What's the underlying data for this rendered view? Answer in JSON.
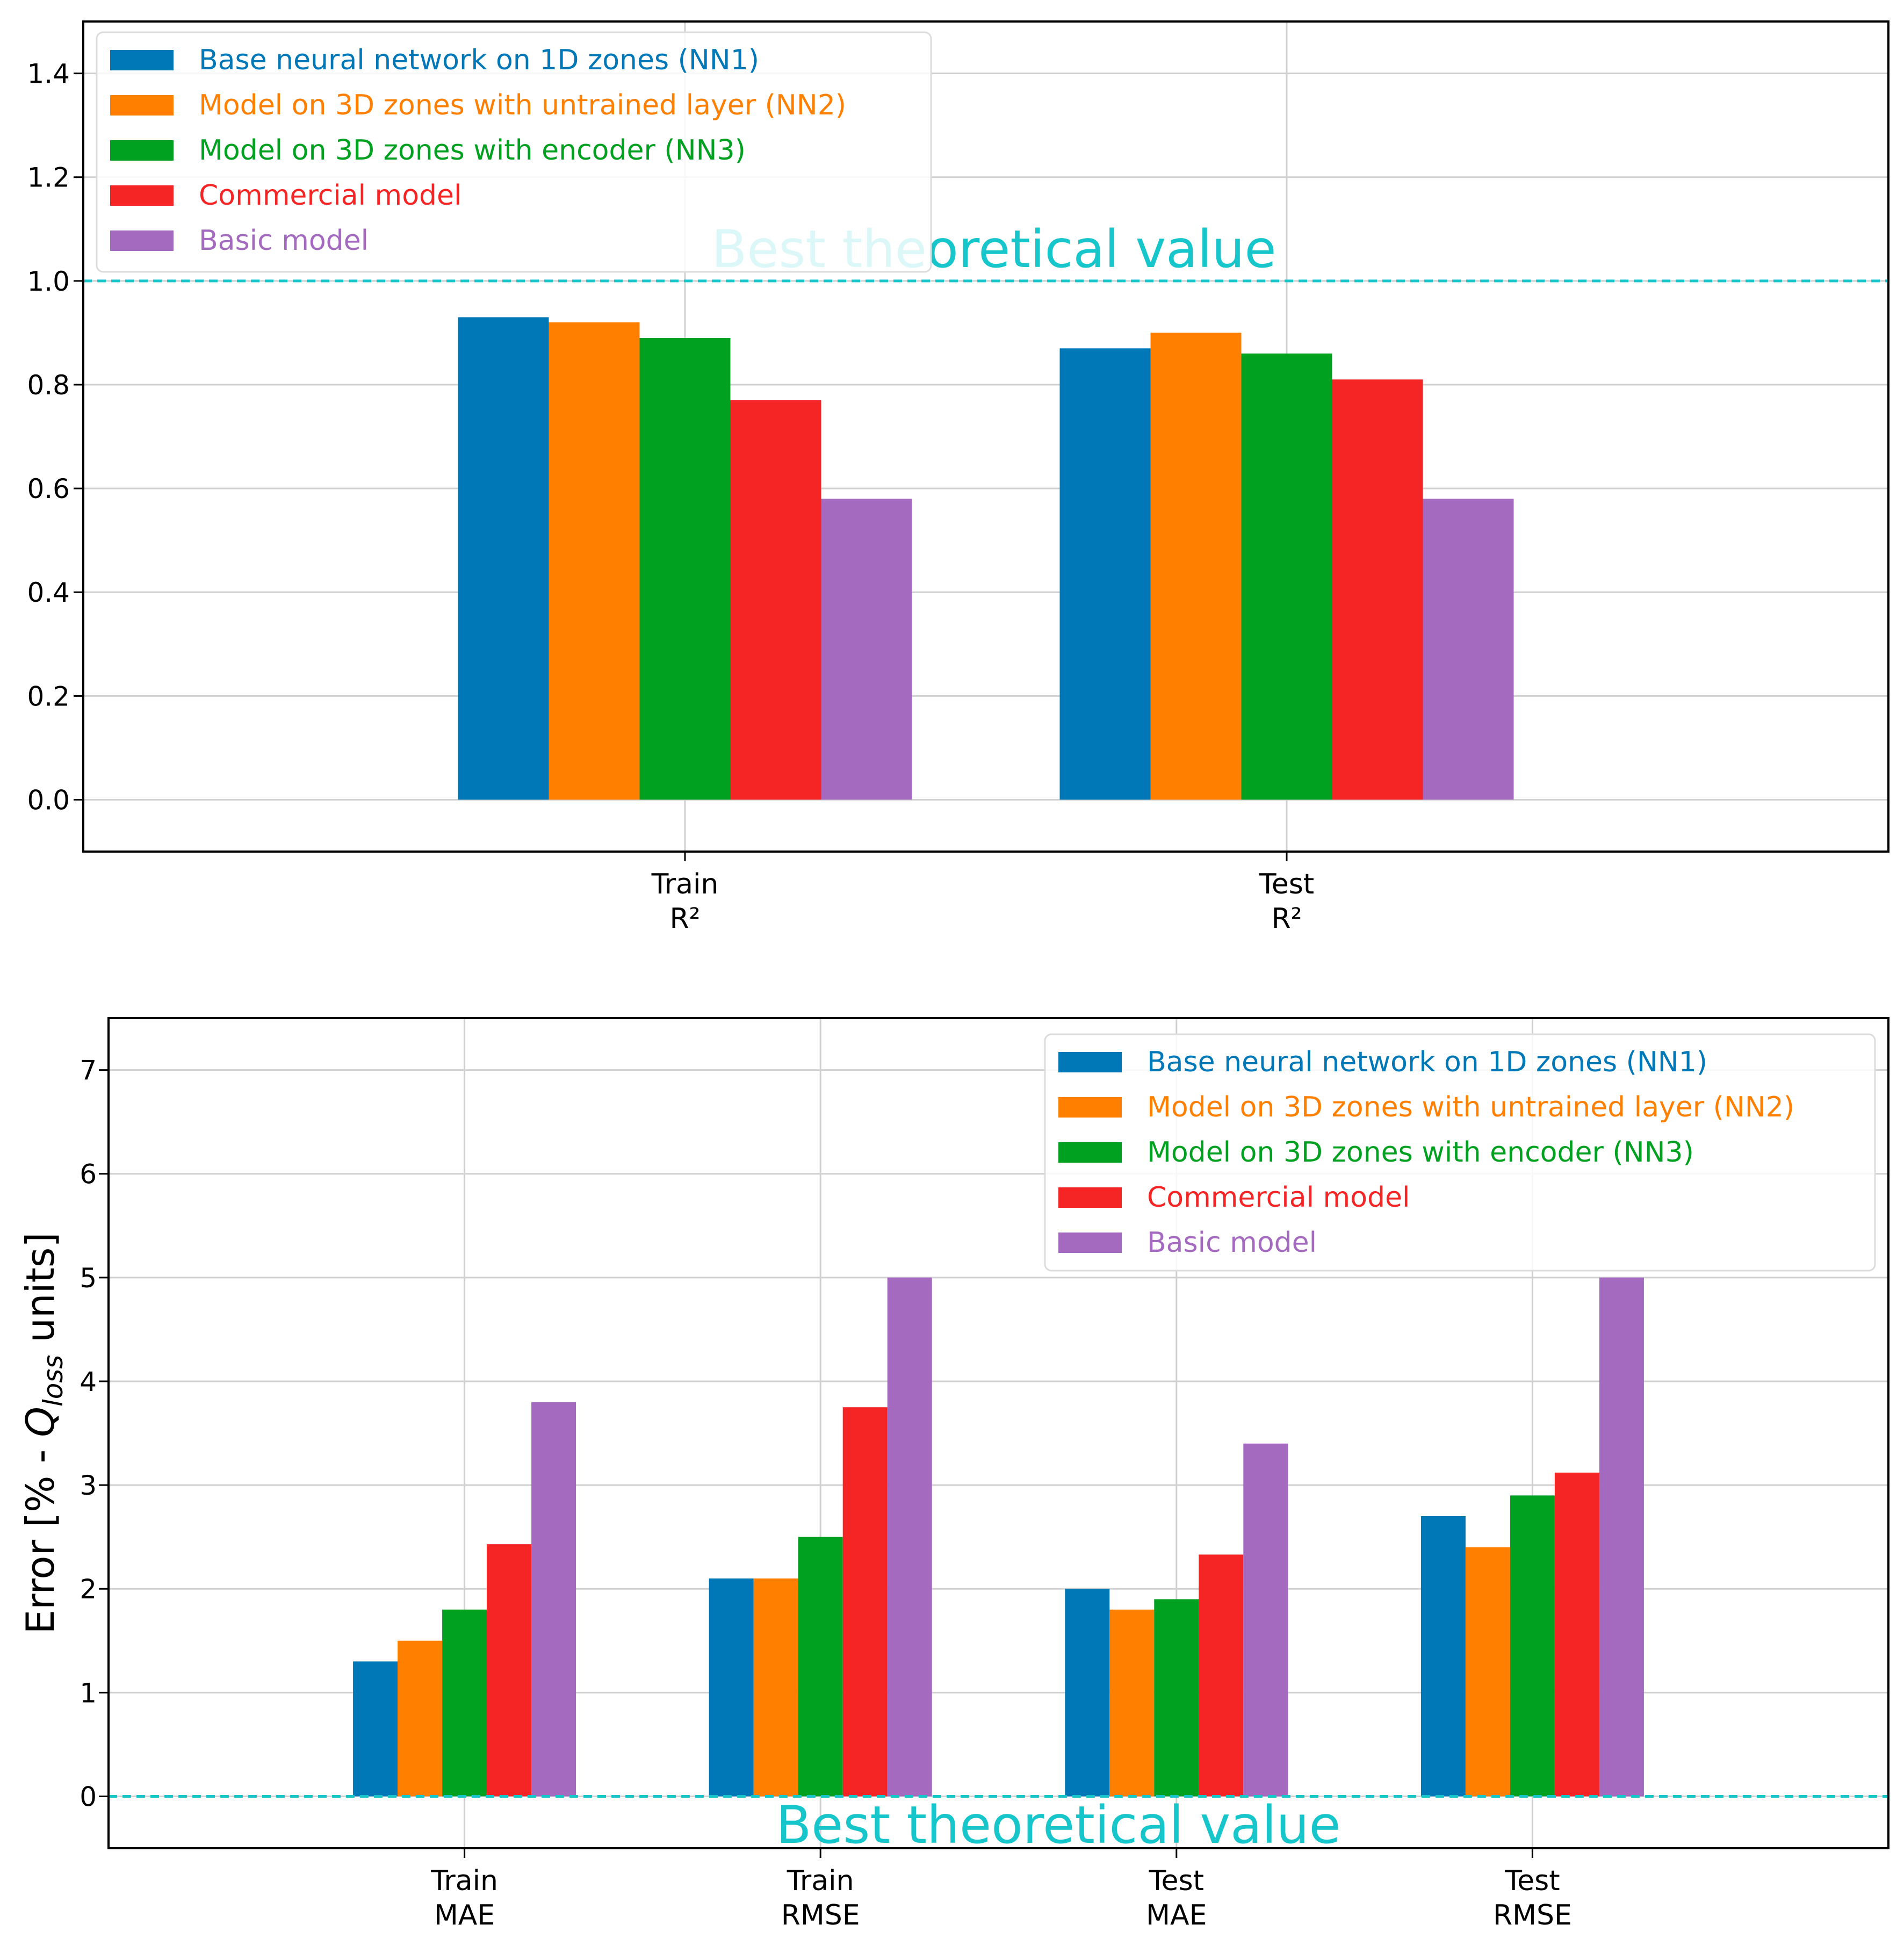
{
  "colors": {
    "nn1": "#0077b6",
    "nn2": "#ff7f00",
    "nn3": "#00a020",
    "commercial": "#f52525",
    "basic": "#a46abf",
    "reference": "#17c6cb"
  },
  "chart_data": [
    {
      "type": "bar",
      "categories": [
        [
          "Train",
          "R²"
        ],
        [
          "Test",
          "R²"
        ]
      ],
      "series": [
        {
          "name": "Base neural network on 1D zones (NN1)",
          "color": "#0077b6",
          "values": [
            0.93,
            0.87
          ]
        },
        {
          "name": "Model on 3D zones with untrained layer (NN2)",
          "color": "#ff7f00",
          "values": [
            0.92,
            0.9
          ]
        },
        {
          "name": "Model on 3D zones with encoder (NN3)",
          "color": "#00a020",
          "values": [
            0.89,
            0.86
          ]
        },
        {
          "name": "Commercial model",
          "color": "#f52525",
          "values": [
            0.77,
            0.81
          ]
        },
        {
          "name": "Basic model",
          "color": "#a46abf",
          "values": [
            0.58,
            0.58
          ]
        }
      ],
      "ylim": [
        -0.1,
        1.5
      ],
      "yticks": [
        "0.0",
        "0.2",
        "0.4",
        "0.6",
        "0.8",
        "1.0",
        "1.2",
        "1.4"
      ],
      "ylabel": "",
      "reference_line": {
        "value": 1.0,
        "label": "Best theoretical value"
      },
      "grid": true,
      "legend_position": "top-left"
    },
    {
      "type": "bar",
      "categories": [
        [
          "Train",
          "MAE"
        ],
        [
          "Train",
          "RMSE"
        ],
        [
          "Test",
          "MAE"
        ],
        [
          "Test",
          "RMSE"
        ]
      ],
      "series": [
        {
          "name": "Base neural network on 1D zones (NN1)",
          "color": "#0077b6",
          "values": [
            1.3,
            2.1,
            2.0,
            2.7
          ]
        },
        {
          "name": "Model on 3D zones with untrained layer (NN2)",
          "color": "#ff7f00",
          "values": [
            1.5,
            2.1,
            1.8,
            2.4
          ]
        },
        {
          "name": "Model on 3D zones with encoder (NN3)",
          "color": "#00a020",
          "values": [
            1.8,
            2.5,
            1.9,
            2.9
          ]
        },
        {
          "name": "Commercial model",
          "color": "#f52525",
          "values": [
            2.43,
            3.75,
            2.33,
            3.12
          ]
        },
        {
          "name": "Basic model",
          "color": "#a46abf",
          "values": [
            3.8,
            5.0,
            3.4,
            5.0
          ]
        }
      ],
      "ylim": [
        -0.5,
        7.5
      ],
      "yticks": [
        "0",
        "1",
        "2",
        "3",
        "4",
        "5",
        "6",
        "7"
      ],
      "ylabel": {
        "prefix": "Error [% - ",
        "symbol": "Q",
        "subscript": "loss",
        "suffix": " units]"
      },
      "reference_line": {
        "value": 0,
        "label": "Best theoretical value"
      },
      "grid": true,
      "legend_position": "top-right"
    }
  ]
}
